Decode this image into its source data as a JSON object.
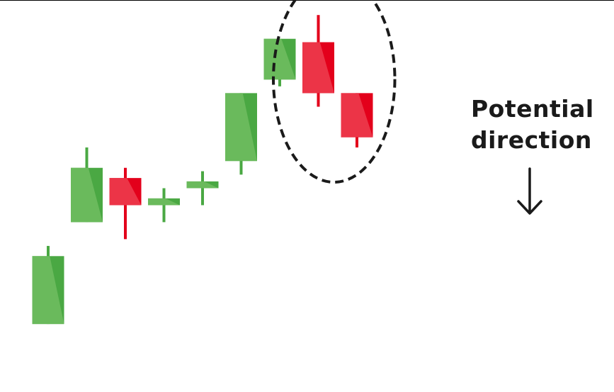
{
  "annotation": {
    "line1": "Potential",
    "line2": "direction",
    "arrow_icon": "arrow-down-icon"
  },
  "colors": {
    "bullish": "#4aa843",
    "bullish_highlight": "#6ebb5f",
    "bearish": "#e3001b",
    "bearish_highlight": "#ec3a4c",
    "ellipse": "#1a1a1a",
    "text": "#1a1a1a"
  },
  "chart_data": {
    "type": "candlestick",
    "title": "",
    "xlabel": "",
    "ylabel": "",
    "ylim": [
      0,
      100
    ],
    "highlight": {
      "type": "dashed-ellipse",
      "candles": [
        7,
        8
      ]
    },
    "candles": [
      {
        "open": 10,
        "close": 30,
        "high": 33,
        "low": 10,
        "direction": "up"
      },
      {
        "open": 40,
        "close": 56,
        "high": 62,
        "low": 40,
        "direction": "up"
      },
      {
        "open": 53,
        "close": 45,
        "high": 56,
        "low": 35,
        "direction": "down"
      },
      {
        "open": 45,
        "close": 47,
        "high": 50,
        "low": 40,
        "direction": "up"
      },
      {
        "open": 50,
        "close": 52,
        "high": 55,
        "low": 45,
        "direction": "up"
      },
      {
        "open": 58,
        "close": 78,
        "high": 78,
        "low": 54,
        "direction": "up"
      },
      {
        "open": 82,
        "close": 94,
        "high": 94,
        "low": 80,
        "direction": "up"
      },
      {
        "open": 93,
        "close": 78,
        "high": 101,
        "low": 74,
        "direction": "down"
      },
      {
        "open": 78,
        "close": 65,
        "high": 78,
        "low": 62,
        "direction": "down"
      }
    ]
  }
}
